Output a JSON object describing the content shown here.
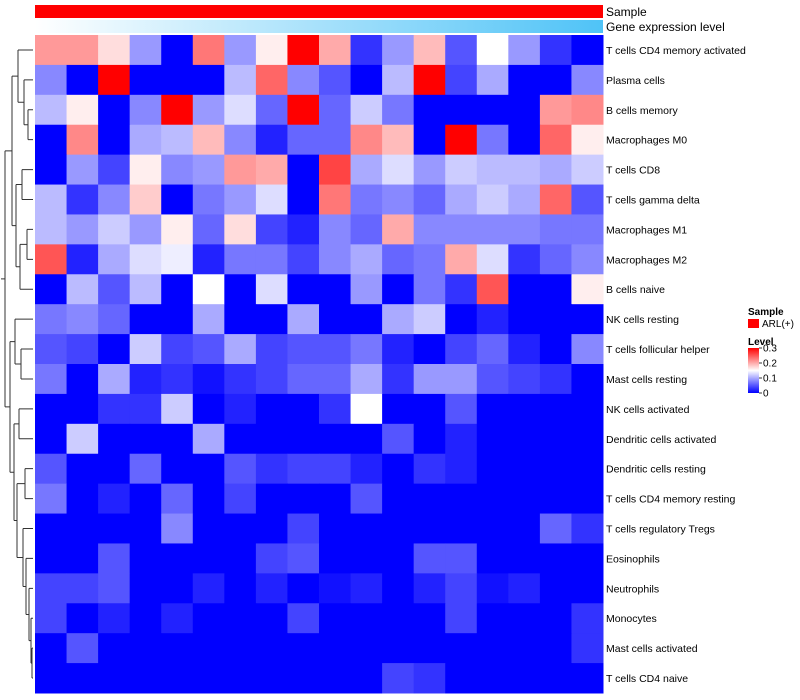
{
  "chart_data": {
    "type": "heatmap",
    "title": "",
    "annotations": [
      {
        "label": "Sample",
        "color": "#ff0000"
      },
      {
        "label": "Gene expression level",
        "gradient_from": "#ffffff",
        "gradient_to": "#4fc3f7"
      }
    ],
    "rows": [
      "T cells CD4 memory activated",
      "Plasma cells",
      "B cells memory",
      "Macrophages M0",
      "T cells CD8",
      "T cells gamma delta",
      "Macrophages M1",
      "Macrophages M2",
      "B cells naive",
      "NK cells resting",
      "T cells follicular helper",
      "Mast cells resting",
      "NK cells activated",
      "Dendritic cells activated",
      "Dendritic cells resting",
      "T cells CD4 memory resting",
      "T cells regulatory  Tregs",
      "Eosinophils",
      "Neutrophils",
      "Monocytes",
      "Mast cells activated",
      "T cells CD4 naive"
    ],
    "n_columns": 18,
    "values": [
      [
        0.21,
        0.21,
        0.17,
        0.09,
        0.0,
        0.23,
        0.09,
        0.16,
        0.3,
        0.2,
        0.03,
        0.09,
        0.19,
        0.05,
        0.15,
        0.09,
        0.03,
        0.0
      ],
      [
        0.08,
        0.0,
        0.3,
        0.0,
        0.0,
        0.0,
        0.11,
        0.24,
        0.08,
        0.05,
        0.0,
        0.11,
        0.3,
        0.04,
        0.1,
        0.0,
        0.0,
        0.08
      ],
      [
        0.11,
        0.16,
        0.0,
        0.08,
        0.3,
        0.09,
        0.13,
        0.06,
        0.3,
        0.06,
        0.12,
        0.07,
        0.0,
        0.0,
        0.0,
        0.0,
        0.21,
        0.22
      ],
      [
        0.0,
        0.22,
        0.0,
        0.1,
        0.11,
        0.19,
        0.08,
        0.02,
        0.06,
        0.06,
        0.22,
        0.19,
        0.0,
        0.3,
        0.07,
        0.0,
        0.24,
        0.16
      ],
      [
        0.0,
        0.09,
        0.04,
        0.16,
        0.08,
        0.09,
        0.21,
        0.2,
        0.0,
        0.26,
        0.1,
        0.13,
        0.09,
        0.12,
        0.11,
        0.11,
        0.1,
        0.12
      ],
      [
        0.11,
        0.03,
        0.08,
        0.18,
        0.0,
        0.07,
        0.09,
        0.13,
        0.0,
        0.23,
        0.07,
        0.08,
        0.06,
        0.1,
        0.12,
        0.1,
        0.24,
        0.05
      ],
      [
        0.11,
        0.09,
        0.12,
        0.09,
        0.16,
        0.06,
        0.17,
        0.04,
        0.02,
        0.08,
        0.06,
        0.2,
        0.08,
        0.08,
        0.08,
        0.08,
        0.07,
        0.07
      ],
      [
        0.25,
        0.02,
        0.1,
        0.13,
        0.14,
        0.02,
        0.07,
        0.07,
        0.04,
        0.08,
        0.1,
        0.06,
        0.07,
        0.2,
        0.13,
        0.03,
        0.06,
        0.08
      ],
      [
        0.0,
        0.11,
        0.05,
        0.11,
        0.0,
        0.15,
        0.0,
        0.13,
        0.0,
        0.0,
        0.09,
        0.0,
        0.07,
        0.03,
        0.25,
        0.0,
        0.0,
        0.16
      ],
      [
        0.07,
        0.08,
        0.06,
        0.0,
        0.0,
        0.1,
        0.0,
        0.0,
        0.1,
        0.0,
        0.0,
        0.1,
        0.12,
        0.0,
        0.02,
        0.0,
        0.0,
        0.0
      ],
      [
        0.05,
        0.04,
        0.0,
        0.12,
        0.04,
        0.05,
        0.1,
        0.04,
        0.05,
        0.05,
        0.07,
        0.02,
        0.0,
        0.04,
        0.06,
        0.02,
        0.0,
        0.08
      ],
      [
        0.07,
        0.0,
        0.1,
        0.02,
        0.03,
        0.01,
        0.03,
        0.04,
        0.06,
        0.06,
        0.1,
        0.03,
        0.09,
        0.09,
        0.05,
        0.04,
        0.03,
        0.0
      ],
      [
        0.0,
        0.0,
        0.03,
        0.03,
        0.12,
        0.0,
        0.02,
        0.0,
        0.0,
        0.03,
        0.15,
        0.0,
        0.0,
        0.05,
        0.0,
        0.0,
        0.0,
        0.0
      ],
      [
        0.0,
        0.12,
        0.0,
        0.0,
        0.0,
        0.1,
        0.0,
        0.0,
        0.0,
        0.0,
        0.0,
        0.05,
        0.0,
        0.02,
        0.0,
        0.0,
        0.0,
        0.0
      ],
      [
        0.05,
        0.0,
        0.0,
        0.06,
        0.0,
        0.0,
        0.05,
        0.03,
        0.04,
        0.04,
        0.02,
        0.0,
        0.03,
        0.02,
        0.0,
        0.0,
        0.0,
        0.0
      ],
      [
        0.07,
        0.0,
        0.02,
        0.0,
        0.06,
        0.0,
        0.04,
        0.0,
        0.0,
        0.0,
        0.05,
        0.0,
        0.0,
        0.0,
        0.0,
        0.0,
        0.0,
        0.0
      ],
      [
        0.0,
        0.0,
        0.0,
        0.0,
        0.08,
        0.0,
        0.0,
        0.0,
        0.04,
        0.0,
        0.0,
        0.0,
        0.0,
        0.0,
        0.0,
        0.0,
        0.06,
        0.03
      ],
      [
        0.0,
        0.0,
        0.05,
        0.0,
        0.0,
        0.0,
        0.0,
        0.04,
        0.05,
        0.0,
        0.0,
        0.0,
        0.05,
        0.05,
        0.0,
        0.0,
        0.0,
        0.0
      ],
      [
        0.04,
        0.04,
        0.05,
        0.0,
        0.0,
        0.02,
        0.0,
        0.02,
        0.0,
        0.01,
        0.02,
        0.0,
        0.02,
        0.04,
        0.01,
        0.02,
        0.0,
        0.0
      ],
      [
        0.04,
        0.0,
        0.02,
        0.0,
        0.02,
        0.0,
        0.0,
        0.0,
        0.04,
        0.0,
        0.0,
        0.0,
        0.0,
        0.04,
        0.0,
        0.0,
        0.0,
        0.03
      ],
      [
        0.0,
        0.05,
        0.0,
        0.0,
        0.0,
        0.0,
        0.0,
        0.0,
        0.0,
        0.0,
        0.0,
        0.0,
        0.0,
        0.0,
        0.0,
        0.0,
        0.0,
        0.03
      ],
      [
        0.0,
        0.0,
        0.0,
        0.0,
        0.0,
        0.0,
        0.0,
        0.0,
        0.0,
        0.0,
        0.0,
        0.04,
        0.03,
        0.0,
        0.0,
        0.0,
        0.0,
        0.0
      ]
    ],
    "color_scale": {
      "min": 0,
      "max": 0.3,
      "low_color": "#0000ff",
      "mid_color": "#ffffff",
      "high_color": "#ff0000",
      "mid_value": 0.15
    },
    "legend": {
      "position": "right",
      "sample_title": "Sample",
      "sample_entry": "ARL(+)",
      "sample_color": "#ff0000",
      "level_title": "Level",
      "level_ticks": [
        "0.3",
        "0.2",
        "0.1",
        "0"
      ]
    },
    "row_dendrogram": true
  }
}
